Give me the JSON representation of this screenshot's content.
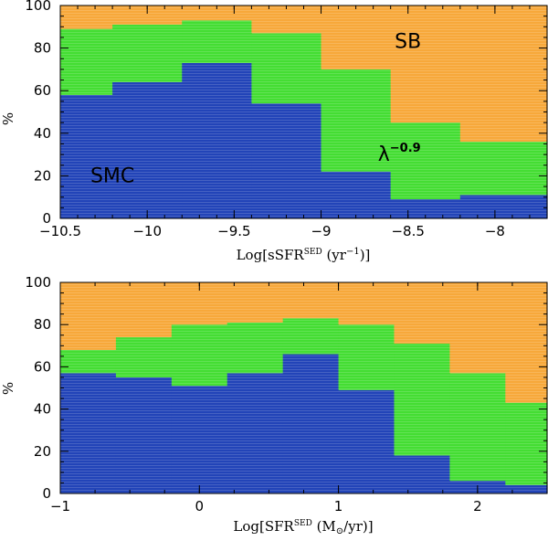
{
  "chart_data": [
    {
      "type": "area",
      "xlabel": "Log[sSFR",
      "xlabel_sup": "SED",
      "xlabel_units": " (yr",
      "xlabel_units_sup": "−1",
      "xlabel_close": ")]",
      "ylabel": "%",
      "xlim": [
        -10.5,
        -7.7
      ],
      "ylim": [
        0,
        100
      ],
      "xticks": [
        -10.5,
        -10,
        -9.5,
        -9,
        -8.5,
        -8
      ],
      "xtick_labels": [
        "−10.5",
        "−10",
        "−9.5",
        "−9",
        "−8.5",
        "−8"
      ],
      "yticks": [
        0,
        20,
        40,
        60,
        80,
        100
      ],
      "ytick_labels": [
        "0",
        "20",
        "40",
        "60",
        "80",
        "100"
      ],
      "bin_edges": [
        -10.5,
        -10.2,
        -9.8,
        -9.4,
        -9.0,
        -8.6,
        -8.2,
        -7.7
      ],
      "series": [
        {
          "name": "SMC",
          "color": "#2244b8",
          "values": [
            58,
            64,
            73,
            54,
            22,
            9,
            11
          ]
        },
        {
          "name": "λ^-0.9",
          "color": "#44dd33",
          "values": [
            31,
            27,
            20,
            33,
            48,
            36,
            25
          ]
        },
        {
          "name": "SB",
          "color": "#f7a83a",
          "values": [
            11,
            9,
            7,
            13,
            30,
            55,
            64
          ]
        }
      ],
      "annotations": [
        {
          "text": "SB",
          "x": -8.5,
          "y": 80
        },
        {
          "text": "λ",
          "sup": "−0.9",
          "x": -8.55,
          "y": 27
        },
        {
          "text": "SMC",
          "x": -10.2,
          "y": 17
        }
      ]
    },
    {
      "type": "area",
      "xlabel": "Log[SFR",
      "xlabel_sup": "SED",
      "xlabel_units": " (M",
      "xlabel_units_sub": "⊙",
      "xlabel_close": "/yr)]",
      "ylabel": "%",
      "xlim": [
        -1,
        2.5
      ],
      "ylim": [
        0,
        100
      ],
      "xticks": [
        -1,
        0,
        1,
        2
      ],
      "xtick_labels": [
        "−1",
        "0",
        "1",
        "2"
      ],
      "yticks": [
        0,
        20,
        40,
        60,
        80,
        100
      ],
      "ytick_labels": [
        "0",
        "20",
        "40",
        "60",
        "80",
        "100"
      ],
      "bin_edges": [
        -1.0,
        -0.6,
        -0.2,
        0.2,
        0.6,
        1.0,
        1.4,
        1.8,
        2.2,
        2.5
      ],
      "series": [
        {
          "name": "SMC",
          "color": "#2244b8",
          "values": [
            57,
            55,
            51,
            57,
            66,
            49,
            18,
            6,
            4
          ]
        },
        {
          "name": "λ^-0.9",
          "color": "#44dd33",
          "values": [
            11,
            19,
            29,
            24,
            17,
            31,
            53,
            51,
            39
          ]
        },
        {
          "name": "SB",
          "color": "#f7a83a",
          "values": [
            32,
            26,
            20,
            19,
            17,
            20,
            29,
            43,
            57
          ]
        }
      ],
      "annotations": []
    }
  ]
}
